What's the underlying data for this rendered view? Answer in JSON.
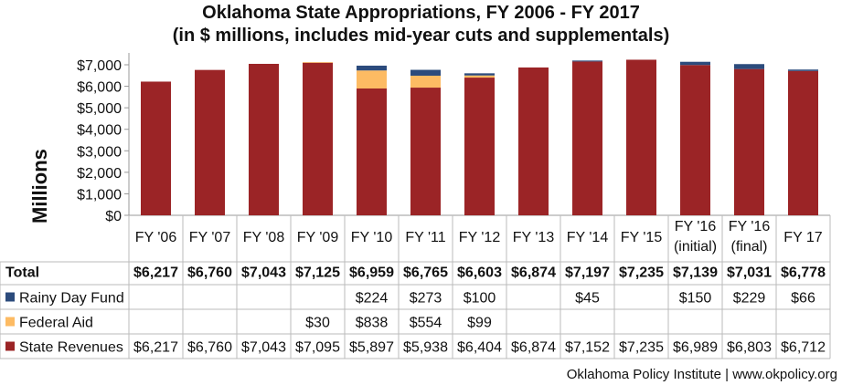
{
  "chart_data": {
    "type": "bar",
    "stacked": true,
    "title": "Oklahoma State Appropriations, FY 2006 - FY 2017",
    "subtitle": "(in $ millions, includes mid-year cuts and supplementals)",
    "ylabel": "Millions",
    "ylim": [
      0,
      7000
    ],
    "yticks": [
      "$0",
      "$1,000",
      "$2,000",
      "$3,000",
      "$4,000",
      "$5,000",
      "$6,000",
      "$7,000"
    ],
    "categories": [
      [
        "FY '06"
      ],
      [
        "FY '07"
      ],
      [
        "FY '08"
      ],
      [
        "FY '09"
      ],
      [
        "FY '10"
      ],
      [
        "FY '11"
      ],
      [
        "FY '12"
      ],
      [
        "FY '13"
      ],
      [
        "FY '14"
      ],
      [
        "FY '15"
      ],
      [
        "FY '16",
        "(initial)"
      ],
      [
        "FY '16",
        "(final)"
      ],
      [
        "FY 17"
      ]
    ],
    "series": [
      {
        "name": "State Revenues",
        "color": "#9b2426",
        "values": [
          6217,
          6760,
          7043,
          7095,
          5897,
          5938,
          6404,
          6874,
          7152,
          7235,
          6989,
          6803,
          6712
        ],
        "labels": [
          "$6,217",
          "$6,760",
          "$7,043",
          "$7,095",
          "$5,897",
          "$5,938",
          "$6,404",
          "$6,874",
          "$7,152",
          "$7,235",
          "$6,989",
          "$6,803",
          "$6,712"
        ]
      },
      {
        "name": "Federal Aid",
        "color": "#fdbb63",
        "values": [
          0,
          0,
          0,
          30,
          838,
          554,
          99,
          0,
          0,
          0,
          0,
          0,
          0
        ],
        "labels": [
          "",
          "",
          "",
          "$30",
          "$838",
          "$554",
          "$99",
          "",
          "",
          "",
          "",
          "",
          ""
        ]
      },
      {
        "name": "Rainy Day Fund",
        "color": "#2c4b7c",
        "values": [
          0,
          0,
          0,
          0,
          224,
          273,
          100,
          0,
          45,
          0,
          150,
          229,
          66
        ],
        "labels": [
          "",
          "",
          "",
          "",
          "$224",
          "$273",
          "$100",
          "",
          "$45",
          "",
          "$150",
          "$229",
          "$66"
        ]
      }
    ],
    "total": {
      "name": "Total",
      "labels": [
        "$6,217",
        "$6,760",
        "$7,043",
        "$7,125",
        "$6,959",
        "$6,765",
        "$6,603",
        "$6,874",
        "$7,197",
        "$7,235",
        "$7,139",
        "$7,031",
        "$6,778"
      ]
    }
  },
  "footer": "Oklahoma Policy Institute | www.okpolicy.org"
}
